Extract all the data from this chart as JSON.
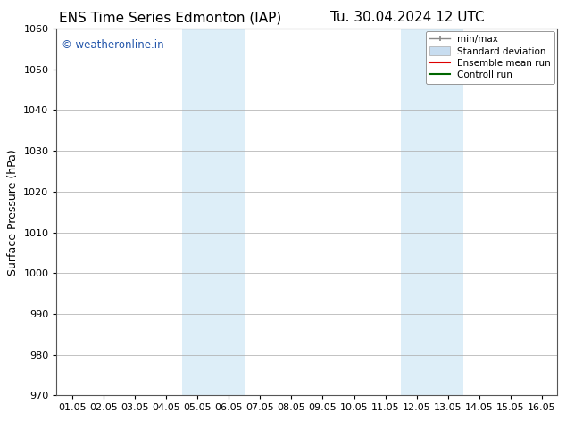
{
  "title_left": "ENS Time Series Edmonton (IAP)",
  "title_right": "Tu. 30.04.2024 12 UTC",
  "ylabel": "Surface Pressure (hPa)",
  "ylim": [
    970,
    1060
  ],
  "yticks": [
    970,
    980,
    990,
    1000,
    1010,
    1020,
    1030,
    1040,
    1050,
    1060
  ],
  "xtick_labels": [
    "01.05",
    "02.05",
    "03.05",
    "04.05",
    "05.05",
    "06.05",
    "07.05",
    "08.05",
    "09.05",
    "10.05",
    "11.05",
    "12.05",
    "13.05",
    "14.05",
    "15.05",
    "16.05"
  ],
  "x_positions": [
    0,
    1,
    2,
    3,
    4,
    5,
    6,
    7,
    8,
    9,
    10,
    11,
    12,
    13,
    14,
    15
  ],
  "shaded_regions": [
    {
      "xmin": 3.5,
      "xmax": 5.5,
      "color": "#ddeef8"
    },
    {
      "xmin": 10.5,
      "xmax": 12.5,
      "color": "#ddeef8"
    }
  ],
  "watermark_text": "© weatheronline.in",
  "watermark_color": "#2255aa",
  "watermark_fontsize": 8.5,
  "bg_color": "#ffffff",
  "title_fontsize": 11,
  "ylabel_fontsize": 9,
  "tick_fontsize": 8
}
